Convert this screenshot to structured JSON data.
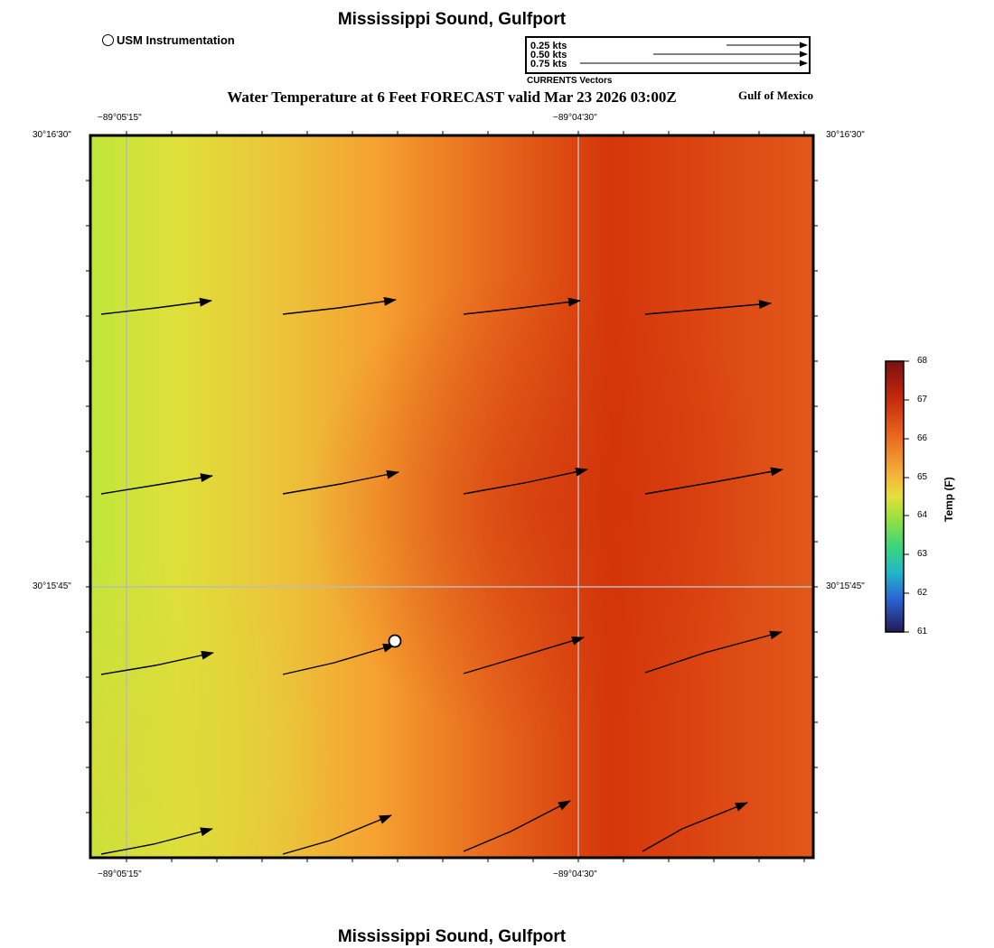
{
  "header": {
    "title": "Mississippi Sound, Gulfport",
    "subtitle": "Water Temperature at 6 Feet FORECAST valid Mar 23 2026 03:00Z",
    "region_label": "Gulf of Mexico"
  },
  "footer": {
    "title": "Mississippi Sound, Gulfport"
  },
  "station_legend": {
    "label": "USM Instrumentation"
  },
  "vector_legend": {
    "caption": "CURRENTS Vectors",
    "entries": [
      {
        "label": "0.25 kts",
        "speed_kts": 0.25
      },
      {
        "label": "0.50 kts",
        "speed_kts": 0.5
      },
      {
        "label": "0.75 kts",
        "speed_kts": 0.75
      }
    ]
  },
  "map": {
    "lon_ticks": [
      "−89°05'15\"",
      "−89°04'30\""
    ],
    "lat_ticks": [
      "30°16'30\"",
      "30°15'45\""
    ],
    "colors": {
      "cold": "#c0e63a",
      "mid": "#f5a030",
      "warm": "#d5360a",
      "grid": "#bbbbbb"
    }
  },
  "colorbar": {
    "title": "Temp (F)",
    "min": 61,
    "max": 68,
    "ticks": [
      "68",
      "67",
      "66",
      "65",
      "64",
      "63",
      "62",
      "61"
    ]
  }
}
